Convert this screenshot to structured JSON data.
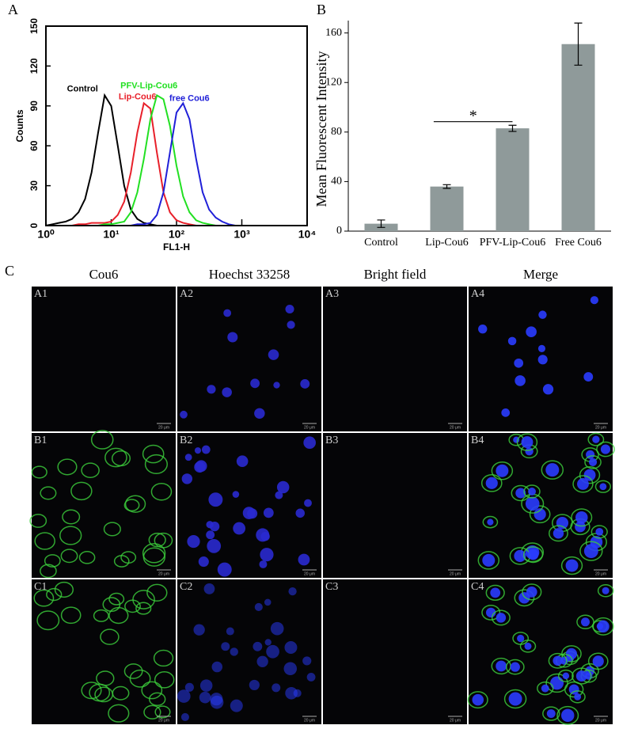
{
  "chart_data": [
    {
      "type": "line",
      "panel_label": "A",
      "xlabel": "FL1-H",
      "ylabel": "Counts",
      "xscale": "log",
      "x": [
        1,
        1.26,
        1.58,
        2,
        2.51,
        3.16,
        3.98,
        5.01,
        6.31,
        7.94,
        10,
        12.6,
        15.8,
        20,
        25.1,
        31.6,
        39.8,
        50.1,
        63.1,
        79.4,
        100,
        126,
        158,
        200,
        251,
        316,
        398,
        501,
        631,
        794,
        1000,
        1259,
        1585,
        1995,
        2512,
        3162,
        3981,
        5012,
        6310,
        7943,
        10000
      ],
      "series": [
        {
          "name": "Control",
          "color": "#000000",
          "values": [
            0,
            1,
            2,
            3,
            5,
            10,
            20,
            40,
            70,
            98,
            90,
            60,
            30,
            12,
            5,
            2,
            1,
            0,
            0,
            0,
            0,
            0,
            0,
            0,
            0,
            0,
            0,
            0,
            0,
            0,
            0,
            0,
            0,
            0,
            0,
            0,
            0,
            0,
            0,
            0,
            0
          ]
        },
        {
          "name": "Lip-Cou6",
          "color": "#e8202a",
          "values": [
            0,
            0,
            0,
            0,
            0,
            1,
            1,
            2,
            2,
            2,
            3,
            8,
            18,
            40,
            70,
            92,
            88,
            55,
            25,
            10,
            4,
            2,
            1,
            0,
            0,
            0,
            0,
            0,
            0,
            0,
            0,
            0,
            0,
            0,
            0,
            0,
            0,
            0,
            0,
            0,
            0
          ]
        },
        {
          "name": "PFV-Lip-Cou6",
          "color": "#22e022",
          "values": [
            0,
            0,
            0,
            0,
            0,
            0,
            0,
            0,
            0,
            1,
            1,
            2,
            3,
            10,
            25,
            50,
            80,
            98,
            95,
            75,
            45,
            22,
            10,
            4,
            2,
            1,
            0,
            0,
            0,
            0,
            0,
            0,
            0,
            0,
            0,
            0,
            0,
            0,
            0,
            0,
            0
          ]
        },
        {
          "name": "free Cou6",
          "color": "#2020d8",
          "values": [
            0,
            0,
            0,
            0,
            0,
            0,
            0,
            0,
            0,
            0,
            0,
            0,
            0,
            0,
            1,
            1,
            2,
            8,
            25,
            55,
            85,
            92,
            80,
            50,
            25,
            12,
            6,
            3,
            1,
            0,
            0,
            0,
            0,
            0,
            0,
            0,
            0,
            0,
            0,
            0,
            0
          ]
        }
      ],
      "xlim": [
        1,
        10000
      ],
      "xticks": [
        {
          "value": 1,
          "label": "10⁰"
        },
        {
          "value": 10,
          "label": "10¹"
        },
        {
          "value": 100,
          "label": "10²"
        },
        {
          "value": 1000,
          "label": "10³"
        },
        {
          "value": 10000,
          "label": "10⁴"
        }
      ],
      "ylim": [
        0,
        150
      ],
      "yticks": [
        0,
        30,
        60,
        90,
        120,
        150
      ]
    },
    {
      "type": "bar",
      "panel_label": "B",
      "ylabel": "Mean Fluorescent Intensity",
      "categories": [
        "Control",
        "Lip-Cou6",
        "PFV-Lip-Cou6",
        "Free Cou6"
      ],
      "values": [
        6,
        36,
        83,
        151
      ],
      "errors": [
        3,
        1.5,
        2.5,
        17
      ],
      "color": "#8f9a9a",
      "ylim": [
        0,
        170
      ],
      "yticks": [
        0,
        40,
        80,
        120,
        160
      ],
      "annotations": [
        {
          "text": "*"
        }
      ]
    }
  ],
  "panel_c": {
    "label": "C",
    "columns": [
      "Cou6",
      "Hoechst 33258",
      "Bright field",
      "Merge"
    ],
    "rows": [
      [
        "A1",
        "A2",
        "A3",
        "A4"
      ],
      [
        "B1",
        "B2",
        "B3",
        "B4"
      ],
      [
        "C1",
        "C2",
        "C3",
        "C4"
      ]
    ],
    "scale_bar": "20 μm"
  }
}
